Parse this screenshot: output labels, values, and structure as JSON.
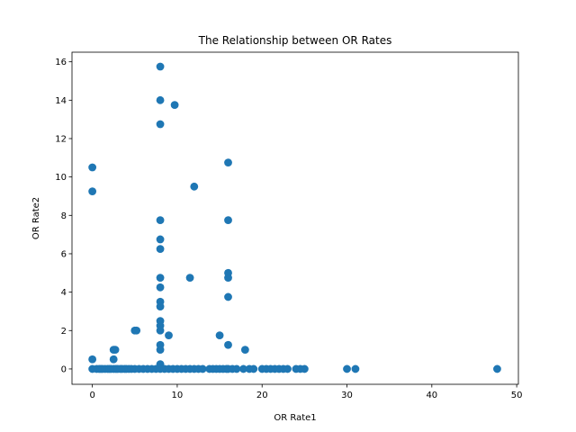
{
  "chart_data": {
    "type": "scatter",
    "title": "The Relationship between OR Rates",
    "xlabel": "OR Rate1",
    "ylabel": "OR Rate2",
    "xlim": [
      -2.4,
      50.2
    ],
    "ylim": [
      -0.8,
      16.5
    ],
    "xticks": [
      0,
      10,
      20,
      30,
      40,
      50
    ],
    "yticks": [
      0,
      2,
      4,
      6,
      8,
      10,
      12,
      14,
      16
    ],
    "grid": false,
    "legend": "none",
    "color": "#1f77b4",
    "points": [
      [
        0,
        10.5
      ],
      [
        0,
        9.25
      ],
      [
        0,
        0.5
      ],
      [
        0,
        0
      ],
      [
        0.5,
        0
      ],
      [
        0.8,
        0
      ],
      [
        1,
        0
      ],
      [
        1.2,
        0
      ],
      [
        1.5,
        0
      ],
      [
        1.8,
        0
      ],
      [
        2,
        0
      ],
      [
        2.2,
        0
      ],
      [
        2.5,
        1
      ],
      [
        2.5,
        0.5
      ],
      [
        2.5,
        0
      ],
      [
        2.7,
        1
      ],
      [
        2.8,
        0
      ],
      [
        3,
        0
      ],
      [
        3.3,
        0
      ],
      [
        3.5,
        0
      ],
      [
        3.8,
        0
      ],
      [
        4,
        0
      ],
      [
        4.3,
        0
      ],
      [
        4.6,
        0
      ],
      [
        5,
        2
      ],
      [
        5.2,
        2
      ],
      [
        5,
        0
      ],
      [
        5.5,
        0
      ],
      [
        6,
        0
      ],
      [
        6.5,
        0
      ],
      [
        7,
        0
      ],
      [
        7.5,
        0
      ],
      [
        8,
        15.75
      ],
      [
        8,
        14
      ],
      [
        8,
        12.75
      ],
      [
        8,
        7.75
      ],
      [
        8,
        6.75
      ],
      [
        8,
        6.25
      ],
      [
        8,
        4.75
      ],
      [
        8,
        4.25
      ],
      [
        8,
        3.5
      ],
      [
        8,
        3.25
      ],
      [
        8,
        2.5
      ],
      [
        8,
        2.25
      ],
      [
        8,
        2
      ],
      [
        8,
        1.25
      ],
      [
        8,
        1
      ],
      [
        8,
        0.25
      ],
      [
        8,
        0
      ],
      [
        8.5,
        0
      ],
      [
        9,
        1.75
      ],
      [
        9,
        0
      ],
      [
        9.5,
        0
      ],
      [
        9.7,
        13.75
      ],
      [
        10,
        0
      ],
      [
        10.5,
        0
      ],
      [
        11,
        0
      ],
      [
        11.5,
        4.75
      ],
      [
        11.5,
        0
      ],
      [
        12,
        9.5
      ],
      [
        12,
        0
      ],
      [
        12.5,
        0
      ],
      [
        13,
        0
      ],
      [
        13.8,
        0
      ],
      [
        14.2,
        0
      ],
      [
        14.6,
        0
      ],
      [
        15,
        1.75
      ],
      [
        15,
        0
      ],
      [
        15.4,
        0
      ],
      [
        15.8,
        0
      ],
      [
        16,
        10.75
      ],
      [
        16,
        7.75
      ],
      [
        16,
        5
      ],
      [
        16,
        4.75
      ],
      [
        16,
        3.75
      ],
      [
        16,
        1.25
      ],
      [
        16,
        0
      ],
      [
        16.5,
        0
      ],
      [
        17,
        0
      ],
      [
        17.8,
        0
      ],
      [
        18,
        1
      ],
      [
        18.5,
        0
      ],
      [
        19,
        0
      ],
      [
        20,
        0
      ],
      [
        20.5,
        0
      ],
      [
        21,
        0
      ],
      [
        21.5,
        0
      ],
      [
        22,
        0
      ],
      [
        22.5,
        0
      ],
      [
        23,
        0
      ],
      [
        24,
        0
      ],
      [
        24.5,
        0
      ],
      [
        25,
        0
      ],
      [
        30,
        0
      ],
      [
        31,
        0
      ],
      [
        47.7,
        0
      ]
    ]
  }
}
